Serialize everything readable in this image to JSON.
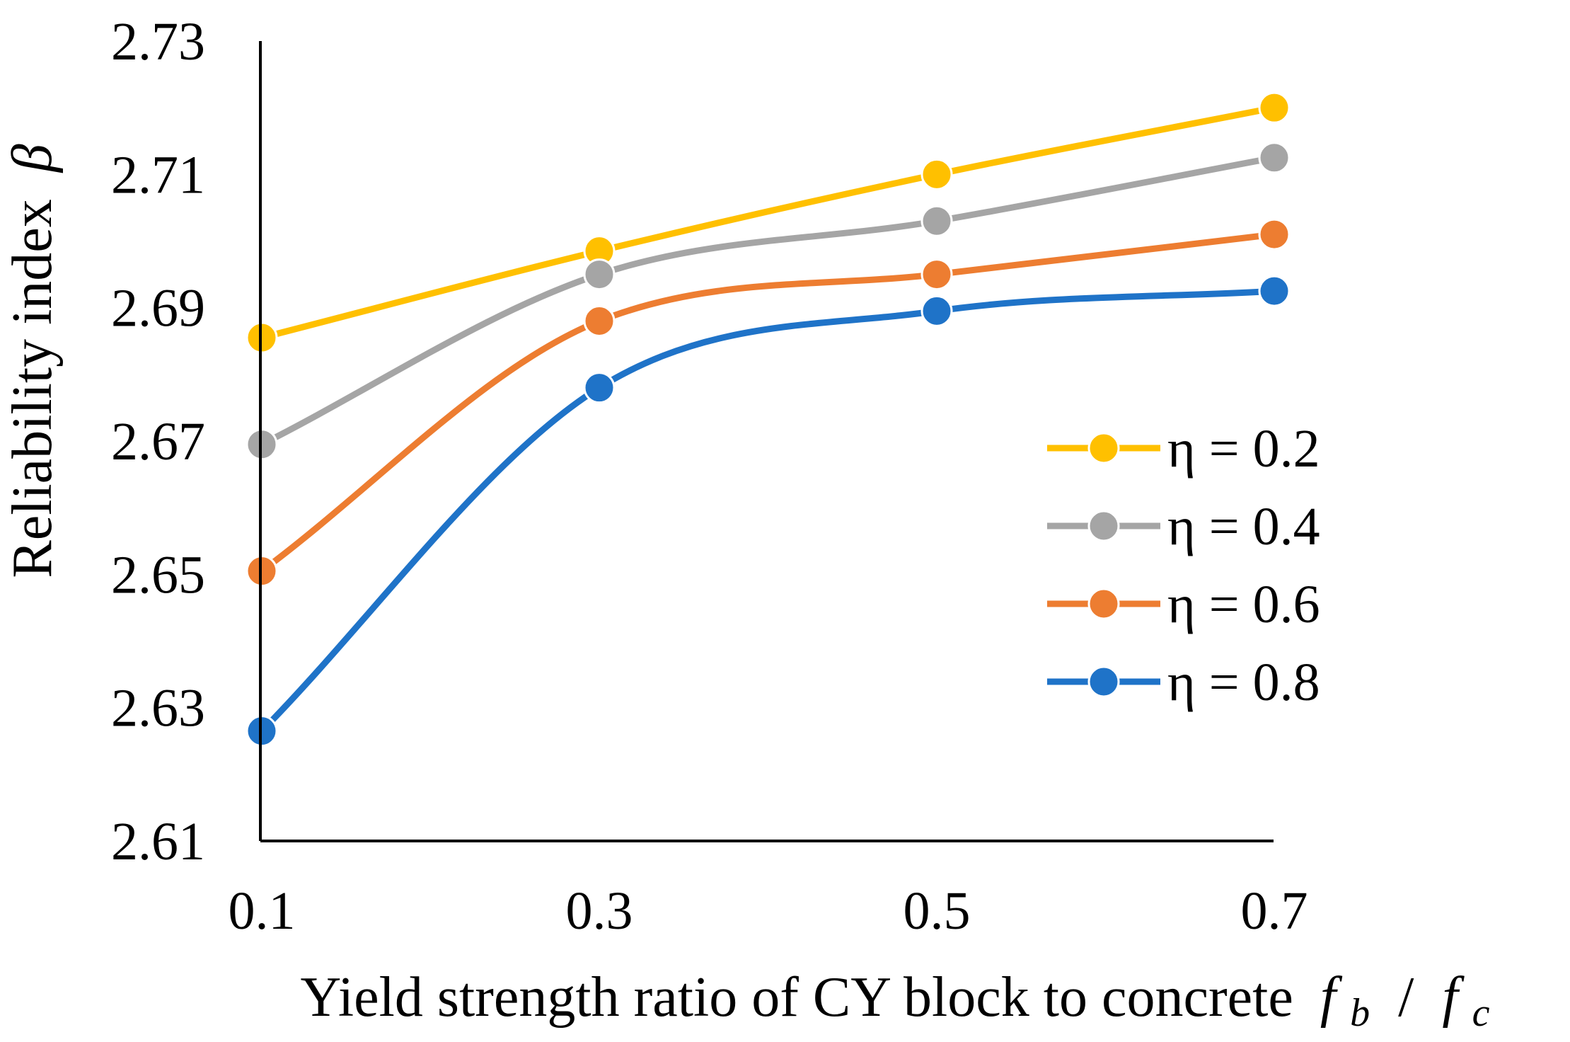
{
  "chart_data": {
    "type": "line",
    "smooth": true,
    "x": [
      0.1,
      0.3,
      0.5,
      0.7
    ],
    "x_tick_labels": [
      "0.1",
      "0.3",
      "0.5",
      "0.7"
    ],
    "series": [
      {
        "name": "η = 0.2",
        "color": "#FFC000",
        "values": [
          2.6855,
          2.6985,
          2.71,
          2.72
        ]
      },
      {
        "name": "η = 0.4",
        "color": "#A5A5A5",
        "values": [
          2.6695,
          2.695,
          2.703,
          2.7125
        ]
      },
      {
        "name": "η = 0.6",
        "color": "#ED7D31",
        "values": [
          2.6505,
          2.688,
          2.695,
          2.701
        ]
      },
      {
        "name": "η = 0.8",
        "color": "#1F73C8",
        "values": [
          2.6265,
          2.678,
          2.6895,
          2.6925
        ]
      }
    ],
    "ylim": [
      2.61,
      2.73
    ],
    "y_ticks": [
      2.61,
      2.63,
      2.65,
      2.67,
      2.69,
      2.71,
      2.73
    ],
    "y_tick_labels": [
      "2.61",
      "2.63",
      "2.65",
      "2.67",
      "2.69",
      "2.71",
      "2.73"
    ],
    "xlabel": "Yield strength ratio of CY block to concrete",
    "xlabel_symbol": {
      "f1": "f",
      "sub1": "b",
      "sep": " / ",
      "f2": "f",
      "sub2": "c"
    },
    "ylabel": "Reliability index",
    "ylabel_symbol": "β",
    "legend_position": "right",
    "grid": false
  }
}
